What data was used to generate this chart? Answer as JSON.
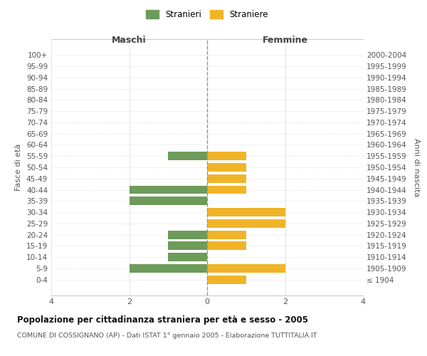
{
  "age_groups": [
    "100+",
    "95-99",
    "90-94",
    "85-89",
    "80-84",
    "75-79",
    "70-74",
    "65-69",
    "60-64",
    "55-59",
    "50-54",
    "45-49",
    "40-44",
    "35-39",
    "30-34",
    "25-29",
    "20-24",
    "15-19",
    "10-14",
    "5-9",
    "0-4"
  ],
  "birth_years": [
    "≤ 1904",
    "1905-1909",
    "1910-1914",
    "1915-1919",
    "1920-1924",
    "1925-1929",
    "1930-1934",
    "1935-1939",
    "1940-1944",
    "1945-1949",
    "1950-1954",
    "1955-1959",
    "1960-1964",
    "1965-1969",
    "1970-1974",
    "1975-1979",
    "1980-1984",
    "1985-1989",
    "1990-1994",
    "1995-1999",
    "2000-2004"
  ],
  "males": [
    0,
    0,
    0,
    0,
    0,
    0,
    0,
    0,
    0,
    1,
    0,
    0,
    2,
    2,
    0,
    0,
    1,
    1,
    1,
    2,
    0
  ],
  "females": [
    0,
    0,
    0,
    0,
    0,
    0,
    0,
    0,
    0,
    1,
    1,
    1,
    1,
    0,
    2,
    2,
    1,
    1,
    0,
    2,
    1
  ],
  "male_color": "#6d9b5a",
  "female_color": "#f0b429",
  "male_label": "Stranieri",
  "female_label": "Straniere",
  "title": "Popolazione per cittadinanza straniera per età e sesso - 2005",
  "subtitle": "COMUNE DI COSSIGNANO (AP) - Dati ISTAT 1° gennaio 2005 - Elaborazione TUTTITALIA.IT",
  "xlabel_left": "Maschi",
  "xlabel_right": "Femmine",
  "ylabel_left": "Fasce di età",
  "ylabel_right": "Anni di nascita",
  "xlim": 4,
  "background_color": "#ffffff",
  "grid_color": "#cccccc",
  "center_line_color": "#999966"
}
